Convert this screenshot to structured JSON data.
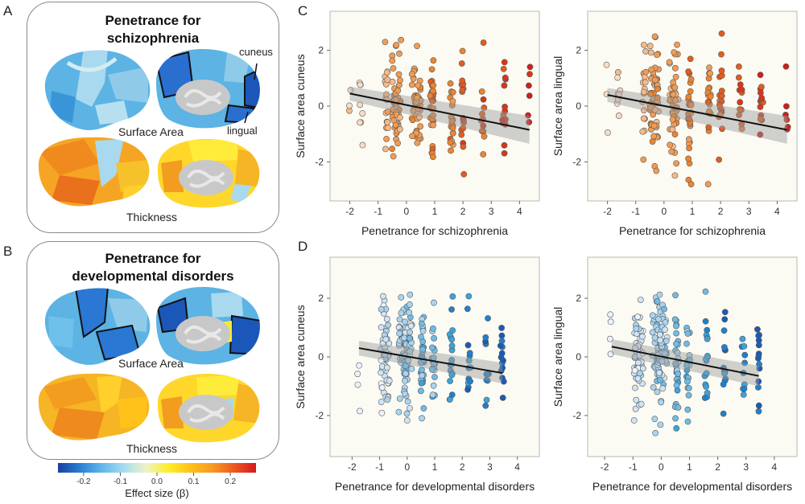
{
  "panel_letters": {
    "a": "A",
    "b": "B",
    "c": "C",
    "d": "D"
  },
  "box_a": {
    "title_line1": "Penetrance for",
    "title_line2": "schizophrenia",
    "surface_label": "Surface Area",
    "thickness_label": "Thickness",
    "cuneus_label": "cuneus",
    "lingual_label": "lingual"
  },
  "box_b": {
    "title_line1": "Penetrance for",
    "title_line2": "developmental disorders",
    "surface_label": "Surface Area",
    "thickness_label": "Thickness"
  },
  "colorbar": {
    "title": "Effect size (β)",
    "ticks": [
      "-0.2",
      "-0.1",
      "0.0",
      "0.1",
      "0.2"
    ],
    "tick_values": [
      -0.2,
      -0.1,
      0.0,
      0.1,
      0.2
    ],
    "range": [
      -0.27,
      0.27
    ],
    "colors": [
      "#1a3f9e",
      "#2a7fd6",
      "#5fb7ec",
      "#a8dcef",
      "#eef3c8",
      "#ffee2a",
      "#ffc21a",
      "#f79a1f",
      "#ec5a1f",
      "#d7181c"
    ]
  },
  "chart_data": [
    {
      "id": "C-left",
      "type": "scatter",
      "xlabel": "Penetrance for schizophrenia",
      "ylabel": "Surface area cuneus",
      "xlim": [
        -2.7,
        4.7
      ],
      "ylim": [
        -3.4,
        3.4
      ],
      "xticks": [
        "-2",
        "-1",
        "0",
        "1",
        "2",
        "3",
        "4"
      ],
      "xtick_values": [
        -2,
        -1,
        0,
        1,
        2,
        3,
        4
      ],
      "yticks": [
        "2",
        "0",
        "-2"
      ],
      "ytick_values": [
        2,
        0,
        -2
      ],
      "palette": "red",
      "point_x": [
        -2.0,
        -1.6,
        -0.7,
        -0.35,
        0.35,
        0.9,
        1.6,
        2.0,
        2.7,
        3.45,
        4.35
      ],
      "point_counts": [
        3,
        8,
        18,
        55,
        45,
        30,
        20,
        18,
        12,
        14,
        6
      ],
      "seed": 11,
      "fit_line": {
        "x": [
          -2.0,
          4.35
        ],
        "y": [
          0.45,
          -0.85
        ]
      },
      "ci_band": {
        "x": [
          -2.0,
          4.35
        ],
        "upper": [
          0.7,
          -0.35
        ],
        "lower": [
          0.2,
          -1.35
        ]
      }
    },
    {
      "id": "C-right",
      "type": "scatter",
      "xlabel": "Penetrance for schizophrenia",
      "ylabel": "Surface area lingual",
      "xlim": [
        -2.7,
        4.7
      ],
      "ylim": [
        -3.4,
        3.4
      ],
      "xticks": [
        "-2",
        "-1",
        "0",
        "1",
        "2",
        "3",
        "4"
      ],
      "xtick_values": [
        -2,
        -1,
        0,
        1,
        2,
        3,
        4
      ],
      "yticks": [
        "2",
        "0",
        "-2"
      ],
      "ytick_values": [
        2,
        0,
        -2
      ],
      "palette": "red",
      "point_x": [
        -2.0,
        -1.6,
        -0.7,
        -0.35,
        0.35,
        0.9,
        1.6,
        2.0,
        2.7,
        3.45,
        4.35
      ],
      "point_counts": [
        3,
        8,
        18,
        55,
        45,
        30,
        20,
        18,
        12,
        14,
        6
      ],
      "seed": 23,
      "fit_line": {
        "x": [
          -2.0,
          4.35
        ],
        "y": [
          0.4,
          -0.85
        ]
      },
      "ci_band": {
        "x": [
          -2.0,
          4.35
        ],
        "upper": [
          0.65,
          -0.35
        ],
        "lower": [
          0.15,
          -1.35
        ]
      }
    },
    {
      "id": "D-left",
      "type": "scatter",
      "xlabel": "Penetrance for developmental disorders",
      "ylabel": "Surface area cuneus",
      "xlim": [
        -2.8,
        4.8
      ],
      "ylim": [
        -3.4,
        3.4
      ],
      "xticks": [
        "-2",
        "-1",
        "0",
        "1",
        "2",
        "3",
        "4"
      ],
      "xtick_values": [
        -2,
        -1,
        0,
        1,
        2,
        3,
        4
      ],
      "yticks": [
        "2",
        "0",
        "-2"
      ],
      "ytick_values": [
        2,
        0,
        -2
      ],
      "palette": "blue",
      "point_x": [
        -1.75,
        -0.8,
        -0.15,
        0.05,
        0.55,
        0.95,
        1.6,
        2.25,
        2.9,
        3.45
      ],
      "point_counts": [
        4,
        55,
        50,
        40,
        30,
        22,
        18,
        14,
        10,
        14
      ],
      "seed": 37,
      "fit_line": {
        "x": [
          -1.75,
          3.45
        ],
        "y": [
          0.3,
          -0.55
        ]
      },
      "ci_band": {
        "x": [
          -1.75,
          3.45
        ],
        "upper": [
          0.55,
          -0.2
        ],
        "lower": [
          0.05,
          -0.9
        ]
      }
    },
    {
      "id": "D-right",
      "type": "scatter",
      "xlabel": "Penetrance for developmental disorders",
      "ylabel": "Surface area lingual",
      "xlim": [
        -2.6,
        4.8
      ],
      "ylim": [
        -3.4,
        3.4
      ],
      "xticks": [
        "-2",
        "-1",
        "0",
        "1",
        "2",
        "3",
        "4"
      ],
      "xtick_values": [
        -2,
        -1,
        0,
        1,
        2,
        3,
        4
      ],
      "yticks": [
        "2",
        "0",
        "-2"
      ],
      "ytick_values": [
        2,
        0,
        -2
      ],
      "palette": "blue",
      "point_x": [
        -1.75,
        -0.8,
        -0.15,
        0.05,
        0.55,
        0.95,
        1.6,
        2.25,
        2.9,
        3.45
      ],
      "point_counts": [
        4,
        55,
        50,
        40,
        30,
        22,
        18,
        14,
        10,
        14
      ],
      "seed": 53,
      "fit_line": {
        "x": [
          -1.75,
          3.45
        ],
        "y": [
          0.35,
          -0.65
        ]
      },
      "ci_band": {
        "x": [
          -1.75,
          3.45
        ],
        "upper": [
          0.6,
          -0.3
        ],
        "lower": [
          0.1,
          -1.0
        ]
      }
    }
  ],
  "palettes": {
    "red": [
      "#f8dcc6",
      "#f6b98a",
      "#f29b52",
      "#ec8430",
      "#e35c1e",
      "#d8361a",
      "#cf1f1a"
    ],
    "blue": [
      "#eaf3fb",
      "#cfe4f6",
      "#a9d4f0",
      "#6fbce6",
      "#3aa3dc",
      "#1f80cc",
      "#1a5ab8"
    ]
  }
}
